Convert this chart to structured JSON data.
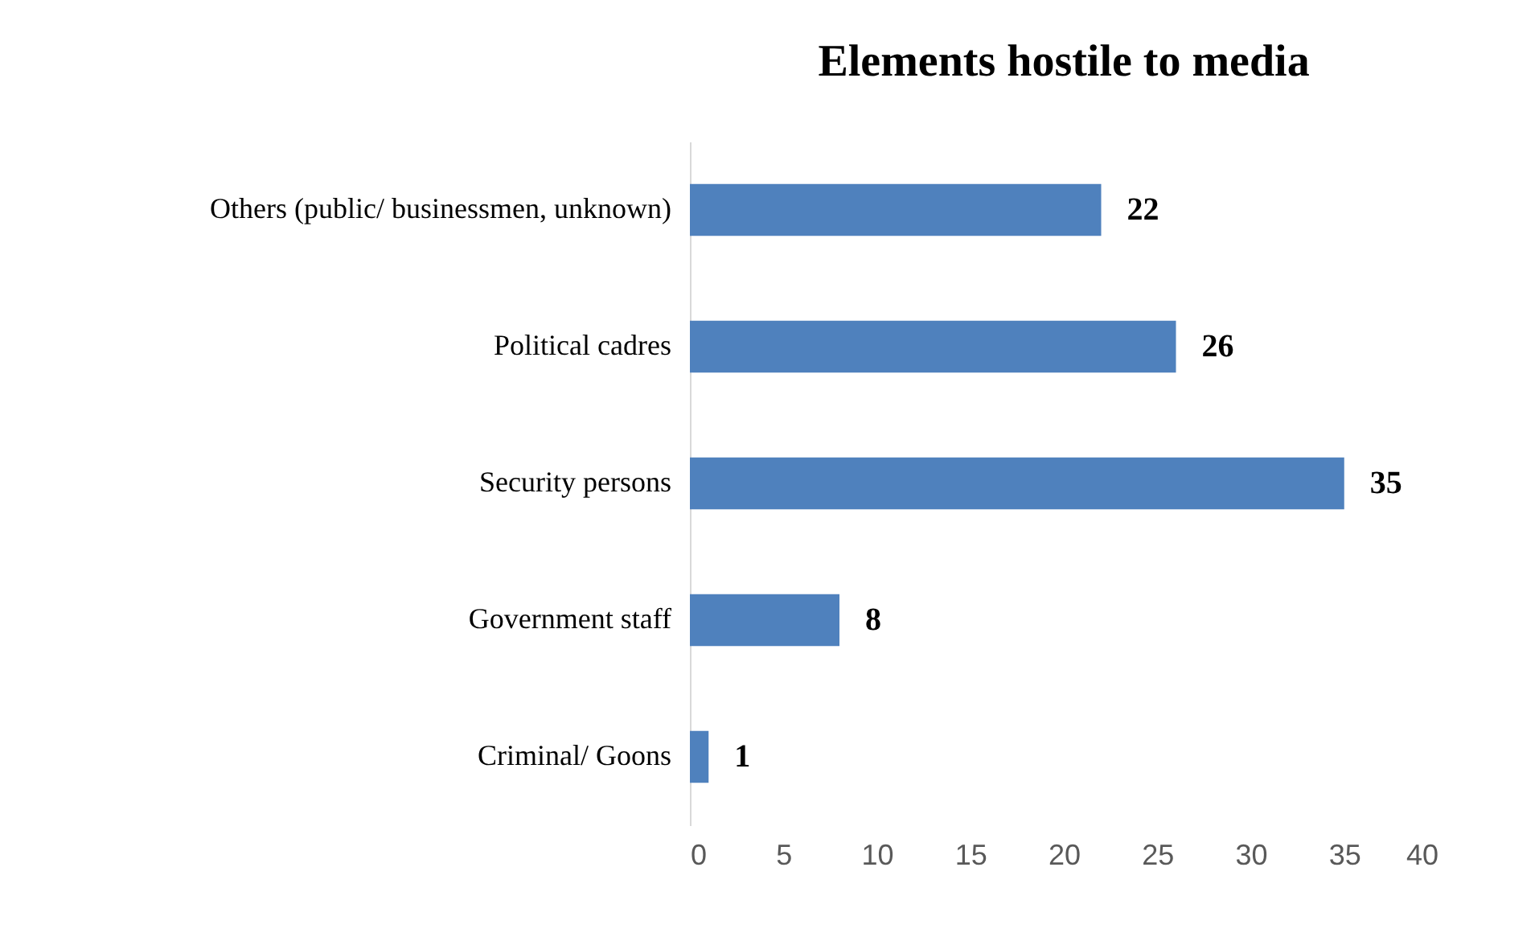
{
  "chart_data": {
    "type": "bar",
    "orientation": "horizontal",
    "title": "Elements hostile to media",
    "categories": [
      "Others (public/ businessmen, unknown)",
      "Political cadres",
      "Security persons",
      "Government staff",
      "Criminal/ Goons"
    ],
    "values": [
      22,
      26,
      35,
      8,
      1
    ],
    "color": "#4f81bd",
    "xlim": [
      0,
      40
    ],
    "xticks": [
      0,
      5,
      10,
      15,
      20,
      25,
      30,
      35,
      40
    ],
    "grid": false,
    "data_labels": true
  }
}
